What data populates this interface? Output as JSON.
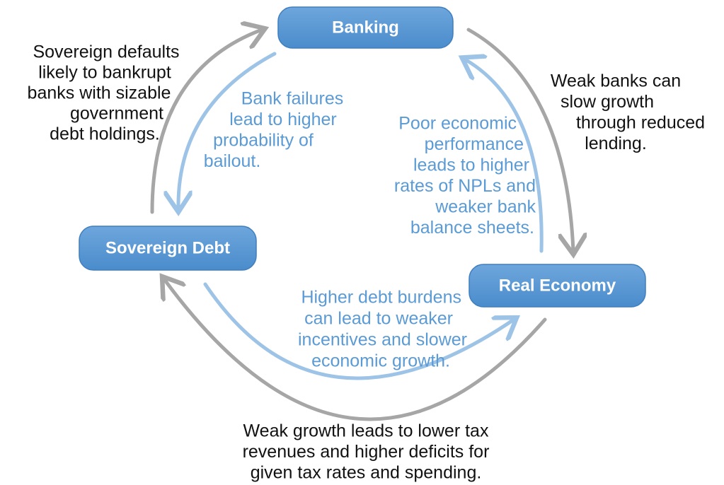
{
  "nodes": [
    {
      "label": "Banking"
    },
    {
      "label": "Sovereign Debt"
    },
    {
      "label": "Real Economy"
    }
  ],
  "annotations": [
    {
      "lines": [
        "Sovereign defaults",
        "likely to bankrupt",
        "banks with sizable",
        "government",
        "debt holdings."
      ]
    },
    {
      "lines": [
        "Weak banks can",
        "slow growth",
        "through reduced",
        "lending."
      ]
    },
    {
      "lines": [
        "Bank failures",
        "lead to higher",
        "probability of",
        "bailout."
      ]
    },
    {
      "lines": [
        "Poor economic",
        "performance",
        "leads to higher",
        "rates of NPLs and",
        "weaker bank",
        "balance sheets."
      ]
    },
    {
      "lines": [
        "Higher debt burdens",
        "can lead to weaker",
        "incentives and slower",
        "economic growth."
      ]
    },
    {
      "lines": [
        "Weak growth leads to lower tax",
        "revenues and higher deficits for",
        "given tax rates and spending."
      ]
    }
  ]
}
